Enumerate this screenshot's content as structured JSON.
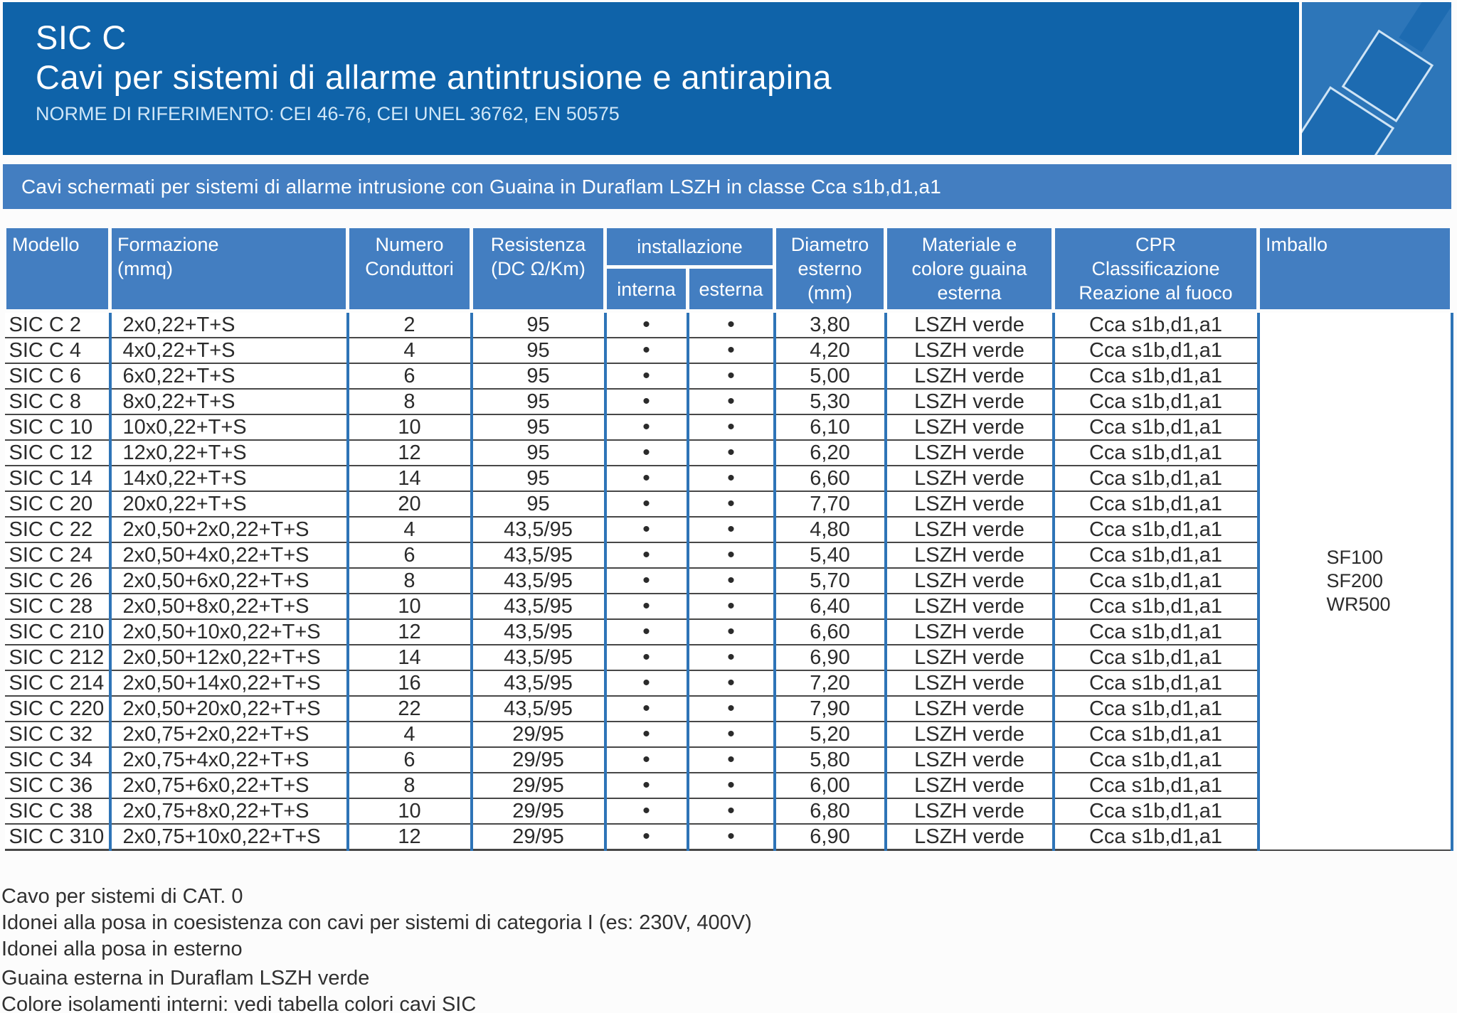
{
  "header": {
    "product": "SIC C",
    "title": "Cavi per sistemi di allarme antintrusione e antirapina",
    "norms": "NORME DI RIFERIMENTO: CEI 46-76, CEI UNEL 36762, EN 50575"
  },
  "banner": {
    "text": "Cavi schermati per sistemi di allarme intrusione con Guaina in Duraflam LSZH in classe Cca s1b,d1,a1"
  },
  "colors": {
    "header_blue": "#0f63a9",
    "band_blue": "#437ec1",
    "grid_blue": "#2e74b7",
    "sheath_color_name": "LSZH verde"
  },
  "table": {
    "headers": {
      "modello": "Modello",
      "formazione": "Formazione",
      "formazione_unit": "(mmq)",
      "numero_l1": "Numero",
      "numero_l2": "Conduttori",
      "resistenza": "Resistenza",
      "resistenza_unit": "(DC Ω/Km)",
      "installazione": "installazione",
      "interna": "interna",
      "esterna": "esterna",
      "diametro_l1": "Diametro",
      "diametro_l2": "esterno",
      "diametro_l3": "(mm)",
      "materiale_l1": "Materiale e",
      "materiale_l2": "colore guaina",
      "materiale_l3": "esterna",
      "cpr_l1": "CPR",
      "cpr_l2": "Classificazione",
      "cpr_l3": "Reazione al fuoco",
      "imballo": "Imballo"
    },
    "bullet": "•",
    "rows": [
      {
        "model": "SIC C 2",
        "formation": "2x0,22+T+S",
        "conductors": "2",
        "resistance": "95",
        "interna": true,
        "esterna": true,
        "diameter": "3,80",
        "material": "LSZH verde",
        "cpr": "Cca s1b,d1,a1"
      },
      {
        "model": "SIC C 4",
        "formation": "4x0,22+T+S",
        "conductors": "4",
        "resistance": "95",
        "interna": true,
        "esterna": true,
        "diameter": "4,20",
        "material": "LSZH verde",
        "cpr": "Cca s1b,d1,a1"
      },
      {
        "model": "SIC C 6",
        "formation": "6x0,22+T+S",
        "conductors": "6",
        "resistance": "95",
        "interna": true,
        "esterna": true,
        "diameter": "5,00",
        "material": "LSZH verde",
        "cpr": "Cca s1b,d1,a1"
      },
      {
        "model": "SIC C 8",
        "formation": "8x0,22+T+S",
        "conductors": "8",
        "resistance": "95",
        "interna": true,
        "esterna": true,
        "diameter": "5,30",
        "material": "LSZH verde",
        "cpr": "Cca s1b,d1,a1"
      },
      {
        "model": "SIC C 10",
        "formation": "10x0,22+T+S",
        "conductors": "10",
        "resistance": "95",
        "interna": true,
        "esterna": true,
        "diameter": "6,10",
        "material": "LSZH verde",
        "cpr": "Cca s1b,d1,a1"
      },
      {
        "model": "SIC C 12",
        "formation": "12x0,22+T+S",
        "conductors": "12",
        "resistance": "95",
        "interna": true,
        "esterna": true,
        "diameter": "6,20",
        "material": "LSZH verde",
        "cpr": "Cca s1b,d1,a1"
      },
      {
        "model": "SIC C 14",
        "formation": "14x0,22+T+S",
        "conductors": "14",
        "resistance": "95",
        "interna": true,
        "esterna": true,
        "diameter": "6,60",
        "material": "LSZH verde",
        "cpr": "Cca s1b,d1,a1"
      },
      {
        "model": "SIC C 20",
        "formation": "20x0,22+T+S",
        "conductors": "20",
        "resistance": "95",
        "interna": true,
        "esterna": true,
        "diameter": "7,70",
        "material": "LSZH verde",
        "cpr": "Cca s1b,d1,a1"
      },
      {
        "model": "SIC C 22",
        "formation": "2x0,50+2x0,22+T+S",
        "conductors": "4",
        "resistance": "43,5/95",
        "interna": true,
        "esterna": true,
        "diameter": "4,80",
        "material": "LSZH verde",
        "cpr": "Cca s1b,d1,a1"
      },
      {
        "model": "SIC C 24",
        "formation": "2x0,50+4x0,22+T+S",
        "conductors": "6",
        "resistance": "43,5/95",
        "interna": true,
        "esterna": true,
        "diameter": "5,40",
        "material": "LSZH verde",
        "cpr": "Cca s1b,d1,a1"
      },
      {
        "model": "SIC C 26",
        "formation": "2x0,50+6x0,22+T+S",
        "conductors": "8",
        "resistance": "43,5/95",
        "interna": true,
        "esterna": true,
        "diameter": "5,70",
        "material": "LSZH verde",
        "cpr": "Cca s1b,d1,a1"
      },
      {
        "model": "SIC C 28",
        "formation": "2x0,50+8x0,22+T+S",
        "conductors": "10",
        "resistance": "43,5/95",
        "interna": true,
        "esterna": true,
        "diameter": "6,40",
        "material": "LSZH verde",
        "cpr": "Cca s1b,d1,a1"
      },
      {
        "model": "SIC C 210",
        "formation": "2x0,50+10x0,22+T+S",
        "conductors": "12",
        "resistance": "43,5/95",
        "interna": true,
        "esterna": true,
        "diameter": "6,60",
        "material": "LSZH verde",
        "cpr": "Cca s1b,d1,a1"
      },
      {
        "model": "SIC C 212",
        "formation": "2x0,50+12x0,22+T+S",
        "conductors": "14",
        "resistance": "43,5/95",
        "interna": true,
        "esterna": true,
        "diameter": "6,90",
        "material": "LSZH verde",
        "cpr": "Cca s1b,d1,a1"
      },
      {
        "model": "SIC C 214",
        "formation": "2x0,50+14x0,22+T+S",
        "conductors": "16",
        "resistance": "43,5/95",
        "interna": true,
        "esterna": true,
        "diameter": "7,20",
        "material": "LSZH verde",
        "cpr": "Cca s1b,d1,a1"
      },
      {
        "model": "SIC C 220",
        "formation": "2x0,50+20x0,22+T+S",
        "conductors": "22",
        "resistance": "43,5/95",
        "interna": true,
        "esterna": true,
        "diameter": "7,90",
        "material": "LSZH verde",
        "cpr": "Cca s1b,d1,a1"
      },
      {
        "model": "SIC C 32",
        "formation": "2x0,75+2x0,22+T+S",
        "conductors": "4",
        "resistance": "29/95",
        "interna": true,
        "esterna": true,
        "diameter": "5,20",
        "material": "LSZH verde",
        "cpr": "Cca s1b,d1,a1"
      },
      {
        "model": "SIC C 34",
        "formation": "2x0,75+4x0,22+T+S",
        "conductors": "6",
        "resistance": "29/95",
        "interna": true,
        "esterna": true,
        "diameter": "5,80",
        "material": "LSZH verde",
        "cpr": "Cca s1b,d1,a1"
      },
      {
        "model": "SIC C 36",
        "formation": "2x0,75+6x0,22+T+S",
        "conductors": "8",
        "resistance": "29/95",
        "interna": true,
        "esterna": true,
        "diameter": "6,00",
        "material": "LSZH verde",
        "cpr": "Cca s1b,d1,a1"
      },
      {
        "model": "SIC C 38",
        "formation": "2x0,75+8x0,22+T+S",
        "conductors": "10",
        "resistance": "29/95",
        "interna": true,
        "esterna": true,
        "diameter": "6,80",
        "material": "LSZH verde",
        "cpr": "Cca s1b,d1,a1"
      },
      {
        "model": "SIC C 310",
        "formation": "2x0,75+10x0,22+T+S",
        "conductors": "12",
        "resistance": "29/95",
        "interna": true,
        "esterna": true,
        "diameter": "6,90",
        "material": "LSZH verde",
        "cpr": "Cca s1b,d1,a1"
      }
    ],
    "imballo_values": [
      "SF100",
      "SF200",
      "WR500"
    ]
  },
  "notes": [
    "Cavo per sistemi di CAT. 0",
    "Idonei alla posa in coesistenza con cavi per sistemi di categoria I (es: 230V, 400V)",
    "Idonei alla posa in esterno",
    "Guaina esterna in Duraflam LSZH verde",
    "Colore isolamenti interni: vedi tabella colori cavi SIC"
  ]
}
